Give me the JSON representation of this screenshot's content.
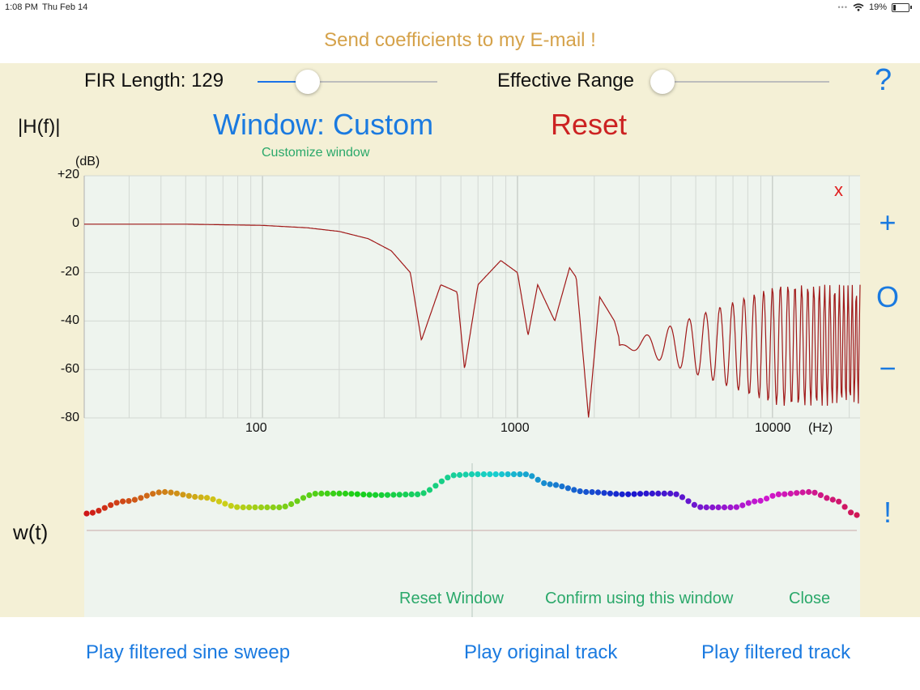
{
  "status_bar": {
    "time": "1:08 PM",
    "date": "Thu Feb 14",
    "battery": "19%"
  },
  "email_link": "Send coefficients to my E-mail !",
  "fir_length": {
    "label": "FIR Length: 129",
    "slider_value": 0.28
  },
  "effective_range": {
    "label": "Effective Range",
    "slider_value": 0.0
  },
  "help_label": "?",
  "magnitude_label": "|H(f)|",
  "window_button": "Window: Custom",
  "reset_button": "Reset",
  "customize_link": "Customize window",
  "close_x": "x",
  "side_controls": {
    "plus": "+",
    "zero": "O",
    "minus": "−",
    "exclaim": "!"
  },
  "window_plot_label": "w(t)",
  "window_actions": {
    "reset_window": "Reset Window",
    "confirm": "Confirm using this window",
    "close": "Close"
  },
  "bottom_buttons": {
    "sweep": "Play filtered sine sweep",
    "original": "Play original track",
    "filtered": "Play filtered track"
  },
  "chart_data": {
    "type": "line",
    "title": "",
    "ylabel": "(dB)",
    "xlabel": "(Hz)",
    "x_scale": "log",
    "xlim": [
      20,
      22050
    ],
    "ylim": [
      -80,
      20
    ],
    "y_ticks": [
      "+20",
      "0",
      "-20",
      "-40",
      "-60",
      "-80"
    ],
    "y_tick_values": [
      20,
      0,
      -20,
      -40,
      -60,
      -80
    ],
    "x_ticks": [
      "100",
      "1000",
      "10000"
    ],
    "x_tick_values": [
      100,
      1000,
      10000
    ],
    "grid": true,
    "series": [
      {
        "color": "#a01818",
        "x": [
          20,
          50,
          100,
          150,
          200,
          260,
          320,
          380,
          420,
          500,
          580,
          620,
          700,
          860,
          1000,
          1100,
          1200,
          1400,
          1600,
          1700,
          1900,
          2100,
          2400,
          2700,
          3000,
          3500,
          4000,
          5000,
          7000,
          10000,
          15000,
          22050
        ],
        "y": [
          0,
          0,
          -0.5,
          -1.5,
          -3,
          -6,
          -11,
          -20,
          -48,
          -25,
          -28,
          -60,
          -25,
          -15,
          -20,
          -46,
          -25,
          -40,
          -18,
          -22,
          -80,
          -30,
          -40,
          -60,
          -35,
          -65,
          -33,
          -70,
          -45,
          -75,
          -55,
          -60
        ]
      }
    ]
  },
  "window_chart": {
    "type": "scatter",
    "points_count": 129,
    "colors": "rainbow red→orange→yellow→green→cyan→blue→violet→magenta→red",
    "x": [
      0,
      0.05,
      0.1,
      0.15,
      0.2,
      0.25,
      0.3,
      0.33,
      0.38,
      0.43,
      0.48,
      0.5,
      0.53,
      0.57,
      0.6,
      0.65,
      0.7,
      0.73,
      0.76,
      0.8,
      0.84,
      0.87,
      0.9,
      0.94,
      0.97,
      1.0
    ],
    "y": [
      0.22,
      0.38,
      0.5,
      0.43,
      0.3,
      0.3,
      0.48,
      0.48,
      0.46,
      0.47,
      0.72,
      0.73,
      0.73,
      0.73,
      0.6,
      0.5,
      0.47,
      0.48,
      0.48,
      0.3,
      0.3,
      0.38,
      0.47,
      0.5,
      0.4,
      0.2
    ]
  }
}
